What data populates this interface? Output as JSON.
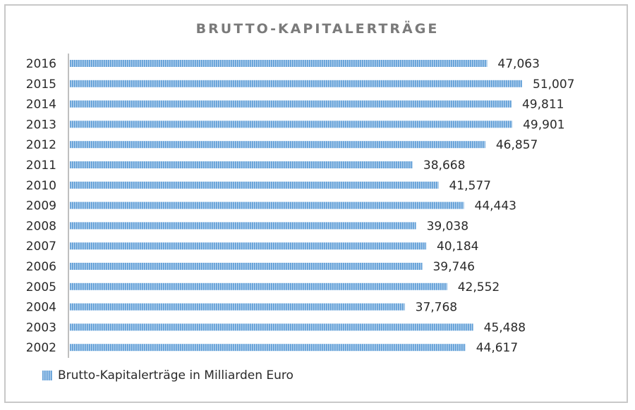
{
  "chart_data": {
    "type": "bar",
    "orientation": "horizontal",
    "title": "BRUTTO-KAPITALERTRÄGE",
    "categories": [
      "2016",
      "2015",
      "2014",
      "2013",
      "2012",
      "2011",
      "2010",
      "2009",
      "2008",
      "2007",
      "2006",
      "2005",
      "2004",
      "2003",
      "2002"
    ],
    "series": [
      {
        "name": "Brutto-Kapitalerträge in Milliarden Euro",
        "values": [
          47.063,
          51.007,
          49.811,
          49.901,
          46.857,
          38.668,
          41.577,
          44.443,
          39.038,
          40.184,
          39.746,
          42.552,
          37.768,
          45.488,
          44.617
        ],
        "labels": [
          "47,063",
          "51,007",
          "49,811",
          "49,901",
          "46,857",
          "38,668",
          "41,577",
          "44,443",
          "39,038",
          "40,184",
          "39,746",
          "42,552",
          "37,768",
          "45,488",
          "44,617"
        ]
      }
    ],
    "xlim": [
      0,
      51.007
    ],
    "grid": false,
    "legend_position": "bottom-left",
    "bar_color": "#5b9bd5"
  }
}
